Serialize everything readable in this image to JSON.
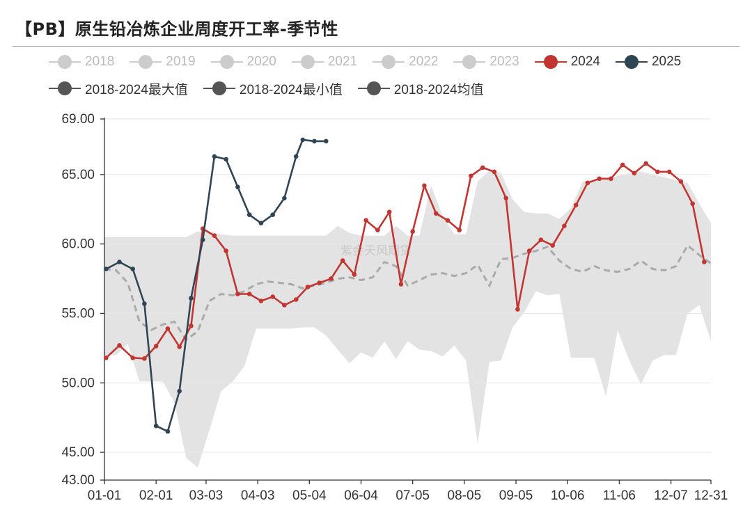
{
  "title": "【PB】原生铅冶炼企业周度开工率-季节性",
  "legend": {
    "row1": [
      {
        "label": "2018",
        "color": "#cccccc",
        "active": false
      },
      {
        "label": "2019",
        "color": "#cccccc",
        "active": false
      },
      {
        "label": "2020",
        "color": "#cccccc",
        "active": false
      },
      {
        "label": "2021",
        "color": "#cccccc",
        "active": false
      },
      {
        "label": "2022",
        "color": "#cccccc",
        "active": false
      },
      {
        "label": "2023",
        "color": "#cccccc",
        "active": false
      },
      {
        "label": "2024",
        "color": "#c23531",
        "active": true
      },
      {
        "label": "2025",
        "color": "#2f4554",
        "active": true
      }
    ],
    "row2": [
      {
        "label": "2018-2024最大值",
        "color": "#555555",
        "active": true
      },
      {
        "label": "2018-2024最小值",
        "color": "#555555",
        "active": true
      },
      {
        "label": "2018-2024均值",
        "color": "#555555",
        "active": true
      }
    ]
  },
  "watermark": "紫金天风期货",
  "chart_data": {
    "type": "line",
    "x_ticks": [
      "01-01",
      "02-01",
      "03-03",
      "04-03",
      "05-04",
      "06-04",
      "07-05",
      "08-05",
      "09-05",
      "10-06",
      "11-06",
      "12-07",
      "12-31"
    ],
    "y_ticks": [
      "43.00",
      "45.00",
      "50.00",
      "55.00",
      "60.00",
      "65.00",
      "69.00"
    ],
    "ylim": [
      43,
      69
    ],
    "colors": {
      "2024": "#c23531",
      "2025": "#2f4554",
      "band": "#e3e3e3",
      "mean": "#aaaaaa"
    },
    "series": [
      {
        "name": "2024",
        "x": [
          "01-02",
          "01-10",
          "01-18",
          "01-25",
          "02-01",
          "02-08",
          "02-15",
          "02-22",
          "03-01",
          "03-08",
          "03-15",
          "03-22",
          "03-29",
          "04-05",
          "04-12",
          "04-19",
          "04-26",
          "05-03",
          "05-10",
          "05-17",
          "05-24",
          "05-31",
          "06-07",
          "06-14",
          "06-21",
          "06-28",
          "07-05",
          "07-12",
          "07-19",
          "07-26",
          "08-02",
          "08-09",
          "08-16",
          "08-23",
          "08-30",
          "09-06",
          "09-13",
          "09-20",
          "09-27",
          "10-04",
          "10-11",
          "10-18",
          "10-25",
          "11-01",
          "11-08",
          "11-15",
          "11-22",
          "11-29",
          "12-06",
          "12-13",
          "12-20",
          "12-27"
        ],
        "values": [
          51.8,
          52.7,
          51.8,
          51.75,
          52.65,
          53.9,
          52.6,
          54.1,
          61.1,
          60.6,
          59.5,
          56.4,
          56.4,
          55.9,
          56.2,
          55.6,
          56.0,
          56.9,
          57.2,
          57.5,
          58.8,
          57.8,
          61.7,
          61.0,
          62.3,
          57.1,
          60.9,
          64.2,
          62.2,
          61.7,
          61.0,
          64.9,
          65.5,
          65.2,
          63.3,
          55.3,
          59.5,
          60.3,
          59.9,
          61.3,
          62.8,
          64.4,
          64.7,
          64.7,
          65.7,
          65.1,
          65.8,
          65.2,
          65.2,
          64.5,
          62.9,
          58.7
        ]
      },
      {
        "name": "2025",
        "x": [
          "01-02",
          "01-10",
          "01-18",
          "01-25",
          "02-01",
          "02-08",
          "02-15",
          "02-22",
          "03-01",
          "03-08",
          "03-15",
          "03-22",
          "03-29",
          "04-05",
          "04-12",
          "04-19",
          "04-26",
          "04-30",
          "05-07",
          "05-14"
        ],
        "values": [
          58.2,
          58.7,
          58.2,
          55.7,
          46.9,
          46.5,
          49.4,
          56.1,
          60.3,
          66.3,
          66.1,
          64.1,
          62.1,
          61.5,
          62.1,
          63.3,
          66.3,
          67.5,
          67.4,
          67.4
        ]
      }
    ]
  }
}
